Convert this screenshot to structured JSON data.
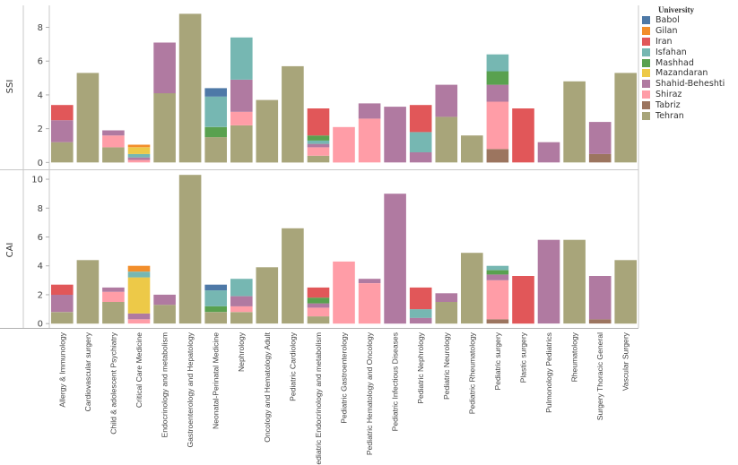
{
  "legend": {
    "title": "University",
    "items": [
      {
        "name": "Babol",
        "color": "#4e79a7"
      },
      {
        "name": "Gilan",
        "color": "#f28e2b"
      },
      {
        "name": "Iran",
        "color": "#e15759"
      },
      {
        "name": "Isfahan",
        "color": "#76b7b2"
      },
      {
        "name": "Mashhad",
        "color": "#59a14f"
      },
      {
        "name": "Mazandaran",
        "color": "#edc948"
      },
      {
        "name": "Shahid-Beheshti",
        "color": "#b07aa1"
      },
      {
        "name": "Shiraz",
        "color": "#ff9da7"
      },
      {
        "name": "Tabriz",
        "color": "#9c755f"
      },
      {
        "name": "Tehran",
        "color": "#a8a57a"
      }
    ]
  },
  "chart_data": {
    "type": "bar",
    "stacked": true,
    "categories": [
      "Allergy & Immunology",
      "Cardiovascular surgery",
      "Child & adolescent Psychiatry",
      "Critical Care Medicine",
      "Endocrinology and metabolism",
      "Gastroenterology and Hepatology",
      "Neonatal-Perinatal Medicine",
      "Nephrology",
      "Oncology and Hematology Adult",
      "Pediatric Cardiology",
      "Pediatric Endocrinology and metabolism",
      "Pediatric Gastroenterology",
      "Pediatric Hematology and Oncology",
      "Pediatric Infectious Diseases",
      "Pediatric Nephrology",
      "Pediatric Neurology",
      "Pediatric Rheumatology",
      "Pediatric surgery",
      "Plastic surgery",
      "Pulmonology Pediatrics",
      "Rheumatology",
      "Surgery Thoracic General",
      "Vascular Surgery"
    ],
    "panels": [
      {
        "ylabel": "SSI",
        "ylim": [
          -0.3,
          9.3
        ],
        "yticks": [
          0,
          2,
          4,
          6,
          8
        ],
        "stacks": [
          [
            {
              "u": "Tehran",
              "v": 1.2
            },
            {
              "u": "Shahid-Beheshti",
              "v": 1.3
            },
            {
              "u": "Iran",
              "v": 0.9
            }
          ],
          [
            {
              "u": "Tehran",
              "v": 5.3
            }
          ],
          [
            {
              "u": "Tehran",
              "v": 0.9
            },
            {
              "u": "Shiraz",
              "v": 0.7
            },
            {
              "u": "Shahid-Beheshti",
              "v": 0.3
            }
          ],
          [
            {
              "u": "Shiraz",
              "v": 0.15
            },
            {
              "u": "Shahid-Beheshti",
              "v": 0.15
            },
            {
              "u": "Isfahan",
              "v": 0.2
            },
            {
              "u": "Mazandaran",
              "v": 0.4
            },
            {
              "u": "Gilan",
              "v": 0.15
            }
          ],
          [
            {
              "u": "Tehran",
              "v": 4.1
            },
            {
              "u": "Shahid-Beheshti",
              "v": 3.0
            }
          ],
          [
            {
              "u": "Tehran",
              "v": 8.8
            }
          ],
          [
            {
              "u": "Tehran",
              "v": 1.5
            },
            {
              "u": "Mashhad",
              "v": 0.6
            },
            {
              "u": "Isfahan",
              "v": 1.8
            },
            {
              "u": "Babol",
              "v": 0.5
            }
          ],
          [
            {
              "u": "Tehran",
              "v": 2.2
            },
            {
              "u": "Shiraz",
              "v": 0.8
            },
            {
              "u": "Shahid-Beheshti",
              "v": 1.9
            },
            {
              "u": "Isfahan",
              "v": 2.5
            }
          ],
          [
            {
              "u": "Tehran",
              "v": 3.7
            }
          ],
          [
            {
              "u": "Tehran",
              "v": 5.7
            }
          ],
          [
            {
              "u": "Tehran",
              "v": 0.4
            },
            {
              "u": "Shiraz",
              "v": 0.5
            },
            {
              "u": "Shahid-Beheshti",
              "v": 0.2
            },
            {
              "u": "Isfahan",
              "v": 0.2
            },
            {
              "u": "Mashhad",
              "v": 0.3
            },
            {
              "u": "Iran",
              "v": 1.6
            }
          ],
          [
            {
              "u": "Shiraz",
              "v": 2.1
            }
          ],
          [
            {
              "u": "Shiraz",
              "v": 2.6
            },
            {
              "u": "Shahid-Beheshti",
              "v": 0.9
            }
          ],
          [
            {
              "u": "Shahid-Beheshti",
              "v": 3.3
            }
          ],
          [
            {
              "u": "Shahid-Beheshti",
              "v": 0.6
            },
            {
              "u": "Isfahan",
              "v": 1.2
            },
            {
              "u": "Iran",
              "v": 1.6
            }
          ],
          [
            {
              "u": "Tehran",
              "v": 2.7
            },
            {
              "u": "Shahid-Beheshti",
              "v": 1.9
            }
          ],
          [
            {
              "u": "Tehran",
              "v": 1.6
            }
          ],
          [
            {
              "u": "Tabriz",
              "v": 0.8
            },
            {
              "u": "Shiraz",
              "v": 2.8
            },
            {
              "u": "Shahid-Beheshti",
              "v": 1.0
            },
            {
              "u": "Mashhad",
              "v": 0.8
            },
            {
              "u": "Isfahan",
              "v": 1.0
            }
          ],
          [
            {
              "u": "Iran",
              "v": 3.2
            }
          ],
          [
            {
              "u": "Shahid-Beheshti",
              "v": 1.2
            }
          ],
          [
            {
              "u": "Tehran",
              "v": 4.8
            }
          ],
          [
            {
              "u": "Tabriz",
              "v": 0.5
            },
            {
              "u": "Shahid-Beheshti",
              "v": 1.9
            }
          ],
          [
            {
              "u": "Tehran",
              "v": 5.3
            }
          ]
        ]
      },
      {
        "ylabel": "CAI",
        "ylim": [
          -0.3,
          10.5
        ],
        "yticks": [
          0,
          2,
          4,
          6,
          8,
          10
        ],
        "stacks": [
          [
            {
              "u": "Tehran",
              "v": 0.8
            },
            {
              "u": "Shahid-Beheshti",
              "v": 1.2
            },
            {
              "u": "Iran",
              "v": 0.7
            }
          ],
          [
            {
              "u": "Tehran",
              "v": 4.4
            }
          ],
          [
            {
              "u": "Tehran",
              "v": 1.5
            },
            {
              "u": "Shiraz",
              "v": 0.7
            },
            {
              "u": "Shahid-Beheshti",
              "v": 0.3
            }
          ],
          [
            {
              "u": "Shiraz",
              "v": 0.3
            },
            {
              "u": "Shahid-Beheshti",
              "v": 0.4
            },
            {
              "u": "Mazandaran",
              "v": 2.5
            },
            {
              "u": "Isfahan",
              "v": 0.4
            },
            {
              "u": "Gilan",
              "v": 0.4
            }
          ],
          [
            {
              "u": "Tehran",
              "v": 1.3
            },
            {
              "u": "Shahid-Beheshti",
              "v": 0.7
            }
          ],
          [
            {
              "u": "Tehran",
              "v": 10.3
            }
          ],
          [
            {
              "u": "Tehran",
              "v": 0.8
            },
            {
              "u": "Mashhad",
              "v": 0.4
            },
            {
              "u": "Isfahan",
              "v": 1.1
            },
            {
              "u": "Babol",
              "v": 0.4
            }
          ],
          [
            {
              "u": "Tehran",
              "v": 0.8
            },
            {
              "u": "Shiraz",
              "v": 0.4
            },
            {
              "u": "Shahid-Beheshti",
              "v": 0.7
            },
            {
              "u": "Isfahan",
              "v": 1.2
            }
          ],
          [
            {
              "u": "Tehran",
              "v": 3.9
            }
          ],
          [
            {
              "u": "Tehran",
              "v": 6.6
            }
          ],
          [
            {
              "u": "Tehran",
              "v": 0.5
            },
            {
              "u": "Shiraz",
              "v": 0.6
            },
            {
              "u": "Shahid-Beheshti",
              "v": 0.3
            },
            {
              "u": "Mashhad",
              "v": 0.4
            },
            {
              "u": "Iran",
              "v": 0.7
            }
          ],
          [
            {
              "u": "Shiraz",
              "v": 4.3
            }
          ],
          [
            {
              "u": "Shiraz",
              "v": 2.8
            },
            {
              "u": "Shahid-Beheshti",
              "v": 0.3
            }
          ],
          [
            {
              "u": "Shahid-Beheshti",
              "v": 9.0
            }
          ],
          [
            {
              "u": "Shahid-Beheshti",
              "v": 0.4
            },
            {
              "u": "Isfahan",
              "v": 0.6
            },
            {
              "u": "Iran",
              "v": 1.5
            }
          ],
          [
            {
              "u": "Tehran",
              "v": 1.5
            },
            {
              "u": "Shahid-Beheshti",
              "v": 0.6
            }
          ],
          [
            {
              "u": "Tehran",
              "v": 4.9
            }
          ],
          [
            {
              "u": "Tabriz",
              "v": 0.3
            },
            {
              "u": "Shiraz",
              "v": 2.7
            },
            {
              "u": "Shahid-Beheshti",
              "v": 0.4
            },
            {
              "u": "Mashhad",
              "v": 0.3
            },
            {
              "u": "Isfahan",
              "v": 0.3
            }
          ],
          [
            {
              "u": "Iran",
              "v": 3.3
            }
          ],
          [
            {
              "u": "Shahid-Beheshti",
              "v": 5.8
            }
          ],
          [
            {
              "u": "Tehran",
              "v": 5.8
            }
          ],
          [
            {
              "u": "Tabriz",
              "v": 0.3
            },
            {
              "u": "Shahid-Beheshti",
              "v": 3.0
            }
          ],
          [
            {
              "u": "Tehran",
              "v": 4.4
            }
          ]
        ]
      }
    ]
  }
}
